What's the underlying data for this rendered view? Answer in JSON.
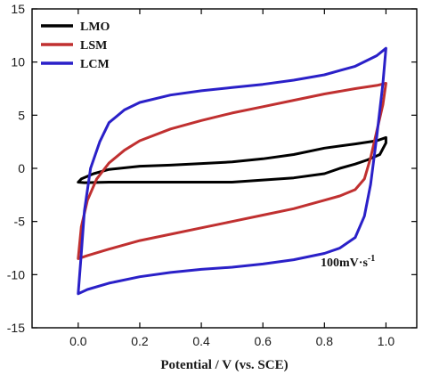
{
  "chart_data": {
    "type": "line",
    "title": "",
    "xlabel": "Potential / V (vs. SCE)",
    "ylabel": "",
    "xlim": [
      -0.15,
      1.1
    ],
    "ylim": [
      -15,
      15
    ],
    "x_ticks": [
      "0.0",
      "0.2",
      "0.4",
      "0.6",
      "0.8",
      "1.0"
    ],
    "y_ticks": [
      "15",
      "10",
      "5",
      "0",
      "-5",
      "-10",
      "-15"
    ],
    "annotation": "100mV·s",
    "annotation_sup": "-1",
    "legend_position": "top-left",
    "series": [
      {
        "name": "LMO",
        "color": "#000000",
        "points": [
          [
            0.0,
            -1.3
          ],
          [
            0.01,
            -1.0
          ],
          [
            0.05,
            -0.5
          ],
          [
            0.1,
            -0.1
          ],
          [
            0.2,
            0.2
          ],
          [
            0.3,
            0.3
          ],
          [
            0.4,
            0.45
          ],
          [
            0.5,
            0.6
          ],
          [
            0.6,
            0.9
          ],
          [
            0.7,
            1.3
          ],
          [
            0.8,
            1.9
          ],
          [
            0.9,
            2.3
          ],
          [
            0.97,
            2.6
          ],
          [
            1.0,
            2.9
          ],
          [
            1.0,
            2.4
          ],
          [
            0.98,
            1.3
          ],
          [
            0.94,
            0.8
          ],
          [
            0.9,
            0.4
          ],
          [
            0.85,
            0.0
          ],
          [
            0.8,
            -0.5
          ],
          [
            0.7,
            -0.9
          ],
          [
            0.6,
            -1.1
          ],
          [
            0.5,
            -1.3
          ],
          [
            0.4,
            -1.3
          ],
          [
            0.3,
            -1.3
          ],
          [
            0.2,
            -1.3
          ],
          [
            0.1,
            -1.3
          ],
          [
            0.02,
            -1.35
          ],
          [
            0.0,
            -1.3
          ]
        ]
      },
      {
        "name": "LSM",
        "color": "#c03030",
        "points": [
          [
            0.0,
            -8.5
          ],
          [
            0.01,
            -5.5
          ],
          [
            0.03,
            -3.0
          ],
          [
            0.06,
            -1.0
          ],
          [
            0.1,
            0.5
          ],
          [
            0.15,
            1.7
          ],
          [
            0.2,
            2.6
          ],
          [
            0.3,
            3.7
          ],
          [
            0.4,
            4.5
          ],
          [
            0.5,
            5.2
          ],
          [
            0.6,
            5.8
          ],
          [
            0.7,
            6.4
          ],
          [
            0.8,
            7.0
          ],
          [
            0.9,
            7.5
          ],
          [
            0.97,
            7.8
          ],
          [
            1.0,
            8.0
          ],
          [
            0.99,
            6.0
          ],
          [
            0.97,
            3.5
          ],
          [
            0.95,
            1.0
          ],
          [
            0.93,
            -1.0
          ],
          [
            0.9,
            -2.0
          ],
          [
            0.85,
            -2.6
          ],
          [
            0.8,
            -3.0
          ],
          [
            0.7,
            -3.8
          ],
          [
            0.6,
            -4.4
          ],
          [
            0.5,
            -5.0
          ],
          [
            0.4,
            -5.6
          ],
          [
            0.3,
            -6.2
          ],
          [
            0.2,
            -6.8
          ],
          [
            0.1,
            -7.6
          ],
          [
            0.03,
            -8.2
          ],
          [
            0.0,
            -8.5
          ]
        ]
      },
      {
        "name": "LCM",
        "color": "#2a20c8",
        "points": [
          [
            0.0,
            -11.8
          ],
          [
            0.01,
            -8.0
          ],
          [
            0.02,
            -4.0
          ],
          [
            0.04,
            0.0
          ],
          [
            0.07,
            2.5
          ],
          [
            0.1,
            4.3
          ],
          [
            0.15,
            5.5
          ],
          [
            0.2,
            6.2
          ],
          [
            0.3,
            6.9
          ],
          [
            0.4,
            7.3
          ],
          [
            0.5,
            7.6
          ],
          [
            0.6,
            7.9
          ],
          [
            0.7,
            8.3
          ],
          [
            0.8,
            8.8
          ],
          [
            0.9,
            9.6
          ],
          [
            0.97,
            10.6
          ],
          [
            1.0,
            11.3
          ],
          [
            0.99,
            8.0
          ],
          [
            0.97,
            3.0
          ],
          [
            0.95,
            -1.5
          ],
          [
            0.93,
            -4.5
          ],
          [
            0.9,
            -6.5
          ],
          [
            0.85,
            -7.5
          ],
          [
            0.8,
            -8.0
          ],
          [
            0.7,
            -8.6
          ],
          [
            0.6,
            -9.0
          ],
          [
            0.5,
            -9.3
          ],
          [
            0.4,
            -9.5
          ],
          [
            0.3,
            -9.8
          ],
          [
            0.2,
            -10.2
          ],
          [
            0.1,
            -10.8
          ],
          [
            0.03,
            -11.4
          ],
          [
            0.0,
            -11.8
          ]
        ]
      }
    ]
  }
}
